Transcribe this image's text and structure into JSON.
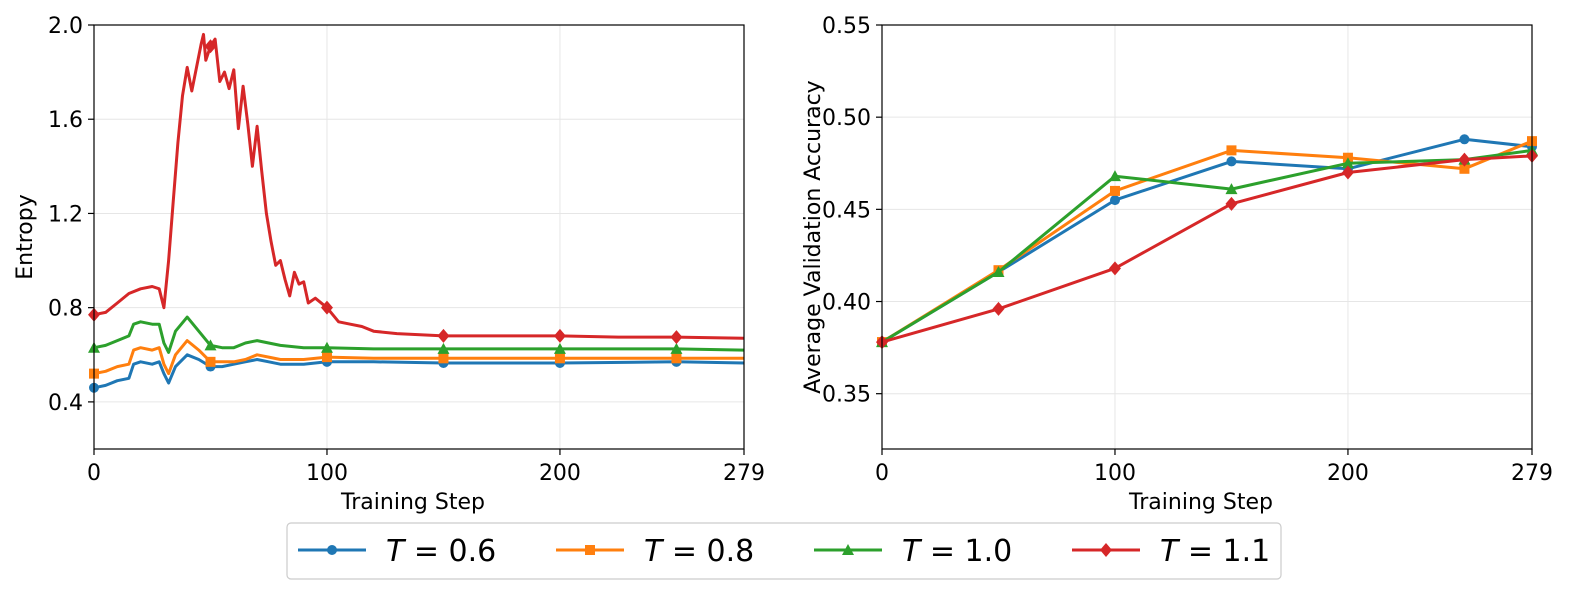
{
  "legend": {
    "position": "bottom-center",
    "entries": [
      {
        "var": "T",
        "text": " = 0.6",
        "color": "#1f77b4",
        "marker": "circle"
      },
      {
        "var": "T",
        "text": " = 0.8",
        "color": "#ff7f0e",
        "marker": "square"
      },
      {
        "var": "T",
        "text": " = 1.0",
        "color": "#2ca02c",
        "marker": "triangle"
      },
      {
        "var": "T",
        "text": " = 1.1",
        "color": "#d62728",
        "marker": "diamond"
      }
    ]
  },
  "chart_data": [
    {
      "type": "line",
      "xlabel": "Training Step",
      "ylabel": "Entropy",
      "xlim": [
        0,
        279
      ],
      "ylim": [
        0.2,
        2.0
      ],
      "xticks": [
        0,
        100,
        200,
        279
      ],
      "yticks": [
        0.4,
        0.8,
        1.2,
        1.6,
        2.0
      ],
      "ytick_labels": [
        "0.4",
        "0.8",
        "1.2",
        "1.6",
        "2.0"
      ],
      "grid": true,
      "marker_every": 50,
      "series": [
        {
          "name": "T = 0.6",
          "color": "#1f77b4",
          "marker": "circle",
          "x": [
            0,
            5,
            10,
            15,
            17,
            20,
            25,
            28,
            30,
            32,
            35,
            40,
            45,
            50,
            55,
            60,
            65,
            70,
            75,
            80,
            90,
            100,
            120,
            150,
            200,
            250,
            279
          ],
          "y": [
            0.46,
            0.47,
            0.49,
            0.5,
            0.56,
            0.57,
            0.56,
            0.57,
            0.52,
            0.48,
            0.55,
            0.6,
            0.58,
            0.55,
            0.55,
            0.56,
            0.57,
            0.58,
            0.57,
            0.56,
            0.56,
            0.57,
            0.57,
            0.565,
            0.565,
            0.57,
            0.565
          ]
        },
        {
          "name": "T = 0.8",
          "color": "#ff7f0e",
          "marker": "square",
          "x": [
            0,
            5,
            10,
            15,
            17,
            20,
            25,
            28,
            30,
            32,
            35,
            40,
            45,
            50,
            55,
            60,
            65,
            70,
            75,
            80,
            90,
            100,
            120,
            150,
            200,
            250,
            279
          ],
          "y": [
            0.52,
            0.53,
            0.55,
            0.56,
            0.62,
            0.63,
            0.62,
            0.63,
            0.56,
            0.52,
            0.6,
            0.66,
            0.62,
            0.57,
            0.57,
            0.57,
            0.58,
            0.6,
            0.59,
            0.58,
            0.58,
            0.59,
            0.585,
            0.585,
            0.585,
            0.585,
            0.585
          ]
        },
        {
          "name": "T = 1.0",
          "color": "#2ca02c",
          "marker": "triangle",
          "x": [
            0,
            5,
            10,
            15,
            17,
            20,
            25,
            28,
            30,
            32,
            35,
            40,
            45,
            50,
            55,
            60,
            65,
            70,
            75,
            80,
            90,
            100,
            120,
            150,
            200,
            250,
            279
          ],
          "y": [
            0.63,
            0.64,
            0.66,
            0.68,
            0.73,
            0.74,
            0.73,
            0.73,
            0.65,
            0.61,
            0.7,
            0.76,
            0.7,
            0.64,
            0.63,
            0.63,
            0.65,
            0.66,
            0.65,
            0.64,
            0.63,
            0.63,
            0.625,
            0.625,
            0.625,
            0.625,
            0.62
          ]
        },
        {
          "name": "T = 1.1",
          "color": "#d62728",
          "marker": "diamond",
          "x": [
            0,
            5,
            10,
            15,
            20,
            25,
            28,
            30,
            32,
            34,
            36,
            38,
            40,
            42,
            44,
            46,
            47,
            48,
            50,
            52,
            54,
            56,
            58,
            60,
            62,
            64,
            66,
            68,
            70,
            72,
            74,
            76,
            78,
            80,
            82,
            84,
            86,
            88,
            90,
            92,
            95,
            100,
            105,
            110,
            115,
            120,
            130,
            150,
            175,
            200,
            225,
            250,
            279
          ],
          "y": [
            0.77,
            0.78,
            0.82,
            0.86,
            0.88,
            0.89,
            0.88,
            0.8,
            1.0,
            1.25,
            1.5,
            1.7,
            1.82,
            1.72,
            1.82,
            1.92,
            1.96,
            1.85,
            1.91,
            1.94,
            1.76,
            1.8,
            1.73,
            1.81,
            1.56,
            1.74,
            1.58,
            1.4,
            1.57,
            1.38,
            1.2,
            1.08,
            0.98,
            1.0,
            0.92,
            0.85,
            0.95,
            0.9,
            0.91,
            0.82,
            0.84,
            0.8,
            0.74,
            0.73,
            0.72,
            0.7,
            0.69,
            0.68,
            0.68,
            0.68,
            0.675,
            0.675,
            0.67
          ]
        }
      ]
    },
    {
      "type": "line",
      "xlabel": "Training Step",
      "ylabel": "Average Validation Accuracy",
      "xlim": [
        0,
        279
      ],
      "ylim": [
        0.32,
        0.55
      ],
      "xticks": [
        0,
        100,
        200,
        279
      ],
      "yticks": [
        0.35,
        0.4,
        0.45,
        0.5,
        0.55
      ],
      "ytick_labels": [
        "0.35",
        "0.40",
        "0.45",
        "0.50",
        "0.55"
      ],
      "grid": true,
      "series": [
        {
          "name": "T = 0.6",
          "color": "#1f77b4",
          "marker": "circle",
          "x": [
            0,
            50,
            100,
            150,
            200,
            250,
            279
          ],
          "y": [
            0.378,
            0.416,
            0.455,
            0.476,
            0.472,
            0.488,
            0.484
          ]
        },
        {
          "name": "T = 0.8",
          "color": "#ff7f0e",
          "marker": "square",
          "x": [
            0,
            50,
            100,
            150,
            200,
            250,
            279
          ],
          "y": [
            0.378,
            0.417,
            0.46,
            0.482,
            0.478,
            0.472,
            0.487
          ]
        },
        {
          "name": "T = 1.0",
          "color": "#2ca02c",
          "marker": "triangle",
          "x": [
            0,
            50,
            100,
            150,
            200,
            250,
            279
          ],
          "y": [
            0.378,
            0.416,
            0.468,
            0.461,
            0.475,
            0.477,
            0.482
          ]
        },
        {
          "name": "T = 1.1",
          "color": "#d62728",
          "marker": "diamond",
          "x": [
            0,
            50,
            100,
            150,
            200,
            250,
            279
          ],
          "y": [
            0.378,
            0.396,
            0.418,
            0.453,
            0.47,
            0.477,
            0.479
          ]
        }
      ]
    }
  ]
}
